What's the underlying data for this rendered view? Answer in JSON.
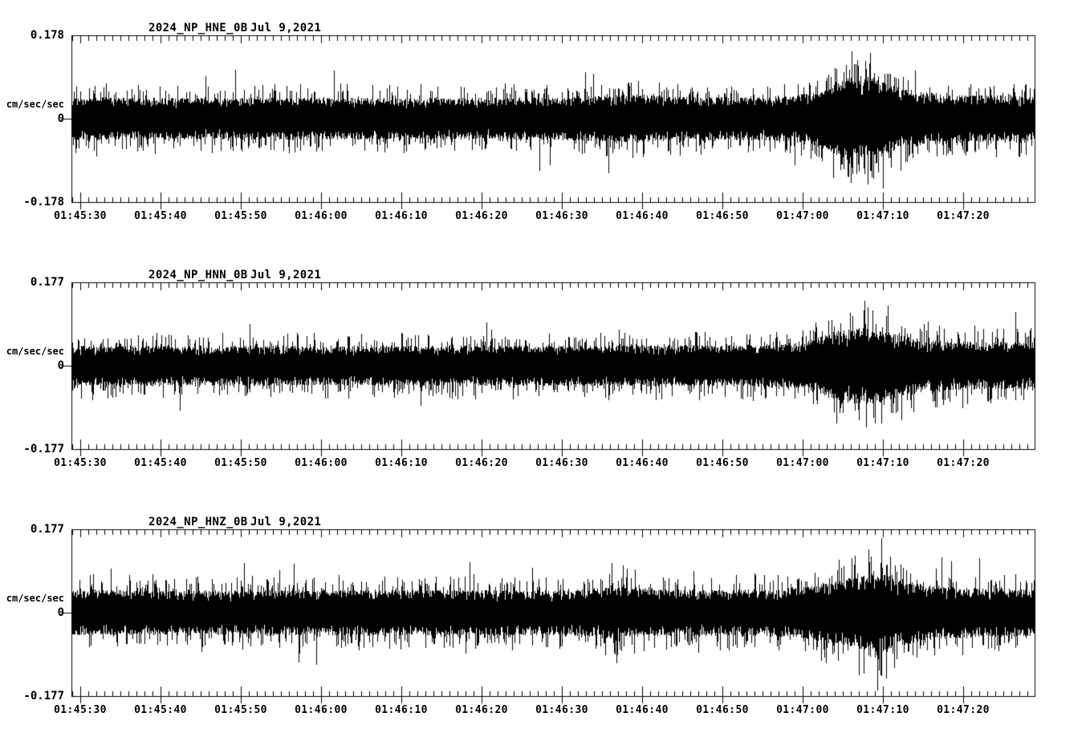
{
  "colors": {
    "background": "#ffffff",
    "trace": "#000000",
    "axis": "#000000",
    "text": "#000000"
  },
  "time_axis": {
    "tick_labels": [
      "01:45:30",
      "01:45:40",
      "01:45:50",
      "01:46:00",
      "01:46:10",
      "01:46:20",
      "01:46:30",
      "01:46:40",
      "01:46:50",
      "01:47:00",
      "01:47:10",
      "01:47:20"
    ],
    "major_tick_seconds": 10,
    "minor_tick_seconds": 1,
    "total_seconds": 120
  },
  "panels": [
    {
      "station": "2024_NP_HNE_0B",
      "date": "Jul 9,2021",
      "unit_label": "cm/sec/sec",
      "ymax_label": "0.178",
      "zero_label": "0",
      "ymin_label": "-0.178"
    },
    {
      "station": "2024_NP_HNN_0B",
      "date": "Jul 9,2021",
      "unit_label": "cm/sec/sec",
      "ymax_label": "0.177",
      "zero_label": "0",
      "ymin_label": "-0.177"
    },
    {
      "station": "2024_NP_HNZ_0B",
      "date": "Jul 9,2021",
      "unit_label": "cm/sec/sec",
      "ymax_label": "0.177",
      "zero_label": "0",
      "ymin_label": "-0.177"
    }
  ],
  "chart_data": [
    {
      "type": "line",
      "title": "2024_NP_HNE_0B   Jul 9,2021",
      "channel": "HNE",
      "ylabel": "cm/sec/sec",
      "ylim": [
        -0.178,
        0.178
      ],
      "y_tick_labels": [
        "0.178",
        "0",
        "-0.178"
      ],
      "x_tick_labels": [
        "01:45:30",
        "01:45:40",
        "01:45:50",
        "01:46:00",
        "01:46:10",
        "01:46:20",
        "01:46:30",
        "01:46:40",
        "01:46:50",
        "01:47:00",
        "01:47:10",
        "01:47:20"
      ],
      "background_noise_amplitude": 0.045,
      "event": {
        "arrival": "01:47:03",
        "peak_time": "01:47:08",
        "peak_amplitude": 0.128
      },
      "envelope": [
        [
          0,
          0.046
        ],
        [
          15,
          0.044
        ],
        [
          30,
          0.046
        ],
        [
          45,
          0.044
        ],
        [
          60,
          0.045
        ],
        [
          67,
          0.05
        ],
        [
          71,
          0.053
        ],
        [
          75,
          0.047
        ],
        [
          85,
          0.046
        ],
        [
          90,
          0.05
        ],
        [
          93,
          0.06
        ],
        [
          95,
          0.078
        ],
        [
          97,
          0.088
        ],
        [
          99,
          0.092
        ],
        [
          101,
          0.082
        ],
        [
          103,
          0.068
        ],
        [
          106,
          0.058
        ],
        [
          110,
          0.052
        ],
        [
          115,
          0.05
        ],
        [
          120,
          0.048
        ]
      ],
      "spikes": [
        [
          8.3,
          0.072
        ],
        [
          8.9,
          -0.068
        ],
        [
          27.1,
          -0.074
        ],
        [
          45.6,
          0.068
        ],
        [
          63.2,
          -0.07
        ],
        [
          70.6,
          0.08
        ],
        [
          71.2,
          -0.082
        ],
        [
          75.8,
          -0.078
        ],
        [
          84.3,
          -0.072
        ],
        [
          93.5,
          -0.09
        ],
        [
          96.2,
          0.1
        ],
        [
          96.9,
          -0.095
        ],
        [
          97.7,
          0.11
        ],
        [
          98.9,
          0.123
        ],
        [
          99.9,
          -0.128
        ],
        [
          100.5,
          -0.115
        ],
        [
          101.8,
          0.095
        ],
        [
          104.2,
          0.082
        ],
        [
          112.6,
          -0.072
        ],
        [
          117.3,
          0.065
        ]
      ],
      "seed": 11
    },
    {
      "type": "line",
      "title": "2024_NP_HNN_0B   Jul 9,2021",
      "channel": "HNN",
      "ylabel": "cm/sec/sec",
      "ylim": [
        -0.177,
        0.177
      ],
      "y_tick_labels": [
        "0.177",
        "0",
        "-0.177"
      ],
      "x_tick_labels": [
        "01:45:30",
        "01:45:40",
        "01:45:50",
        "01:46:00",
        "01:46:10",
        "01:46:20",
        "01:46:30",
        "01:46:40",
        "01:46:50",
        "01:47:00",
        "01:47:10",
        "01:47:20"
      ],
      "background_noise_amplitude": 0.042,
      "event": {
        "arrival": "01:47:04",
        "peak_time": "01:47:08",
        "peak_amplitude": 0.138
      },
      "envelope": [
        [
          0,
          0.042
        ],
        [
          20,
          0.043
        ],
        [
          40,
          0.042
        ],
        [
          60,
          0.043
        ],
        [
          80,
          0.044
        ],
        [
          88,
          0.046
        ],
        [
          91,
          0.05
        ],
        [
          93,
          0.06
        ],
        [
          95,
          0.075
        ],
        [
          97,
          0.08
        ],
        [
          99,
          0.082
        ],
        [
          101,
          0.077
        ],
        [
          103,
          0.067
        ],
        [
          106,
          0.057
        ],
        [
          110,
          0.052
        ],
        [
          115,
          0.051
        ],
        [
          120,
          0.05
        ]
      ],
      "spikes": [
        [
          12.4,
          0.065
        ],
        [
          24.8,
          -0.066
        ],
        [
          41.2,
          0.068
        ],
        [
          55.6,
          -0.064
        ],
        [
          68.2,
          0.076
        ],
        [
          78.9,
          0.07
        ],
        [
          86.5,
          -0.068
        ],
        [
          94.3,
          0.096
        ],
        [
          95.7,
          -0.1
        ],
        [
          97.3,
          0.105
        ],
        [
          98.8,
          0.138
        ],
        [
          99.8,
          0.118
        ],
        [
          100.9,
          -0.123
        ],
        [
          102.1,
          -0.1
        ],
        [
          104.6,
          -0.09
        ],
        [
          107.8,
          -0.088
        ],
        [
          110.4,
          0.072
        ],
        [
          114.2,
          -0.07
        ],
        [
          117.9,
          0.068
        ]
      ],
      "seed": 22
    },
    {
      "type": "line",
      "title": "2024_NP_HNZ_0B   Jul 9,2021",
      "channel": "HNZ",
      "ylabel": "cm/sec/sec",
      "ylim": [
        -0.177,
        0.177
      ],
      "y_tick_labels": [
        "0.177",
        "0",
        "-0.177"
      ],
      "x_tick_labels": [
        "01:45:30",
        "01:45:40",
        "01:45:50",
        "01:46:00",
        "01:46:10",
        "01:46:20",
        "01:46:30",
        "01:46:40",
        "01:46:50",
        "01:47:00",
        "01:47:10",
        "01:47:20"
      ],
      "background_noise_amplitude": 0.048,
      "event": {
        "arrival": "01:47:03",
        "peak_time": "01:47:09",
        "peak_amplitude": 0.165
      },
      "envelope": [
        [
          0,
          0.048
        ],
        [
          20,
          0.047
        ],
        [
          40,
          0.048
        ],
        [
          60,
          0.048
        ],
        [
          64,
          0.051
        ],
        [
          68,
          0.054
        ],
        [
          72,
          0.05
        ],
        [
          80,
          0.049
        ],
        [
          88,
          0.05
        ],
        [
          92,
          0.057
        ],
        [
          95,
          0.068
        ],
        [
          97,
          0.074
        ],
        [
          99,
          0.08
        ],
        [
          101,
          0.086
        ],
        [
          103,
          0.072
        ],
        [
          106,
          0.06
        ],
        [
          110,
          0.054
        ],
        [
          115,
          0.052
        ],
        [
          120,
          0.05
        ]
      ],
      "spikes": [
        [
          10.5,
          0.07
        ],
        [
          22.3,
          -0.072
        ],
        [
          38.7,
          0.068
        ],
        [
          55.2,
          0.075
        ],
        [
          66.5,
          -0.09
        ],
        [
          67.3,
          0.105
        ],
        [
          67.9,
          -0.108
        ],
        [
          68.7,
          0.1
        ],
        [
          70.2,
          0.092
        ],
        [
          77.5,
          0.088
        ],
        [
          78.1,
          -0.085
        ],
        [
          86.3,
          0.08
        ],
        [
          93.8,
          -0.095
        ],
        [
          95.5,
          -0.102
        ],
        [
          97.6,
          0.12
        ],
        [
          98.7,
          -0.13
        ],
        [
          99.6,
          0.115
        ],
        [
          100.4,
          -0.165
        ],
        [
          100.9,
          0.158
        ],
        [
          101.5,
          -0.14
        ],
        [
          102.6,
          0.1
        ],
        [
          104.8,
          -0.09
        ],
        [
          109.3,
          0.075
        ],
        [
          113.6,
          -0.07
        ]
      ],
      "seed": 33
    }
  ]
}
